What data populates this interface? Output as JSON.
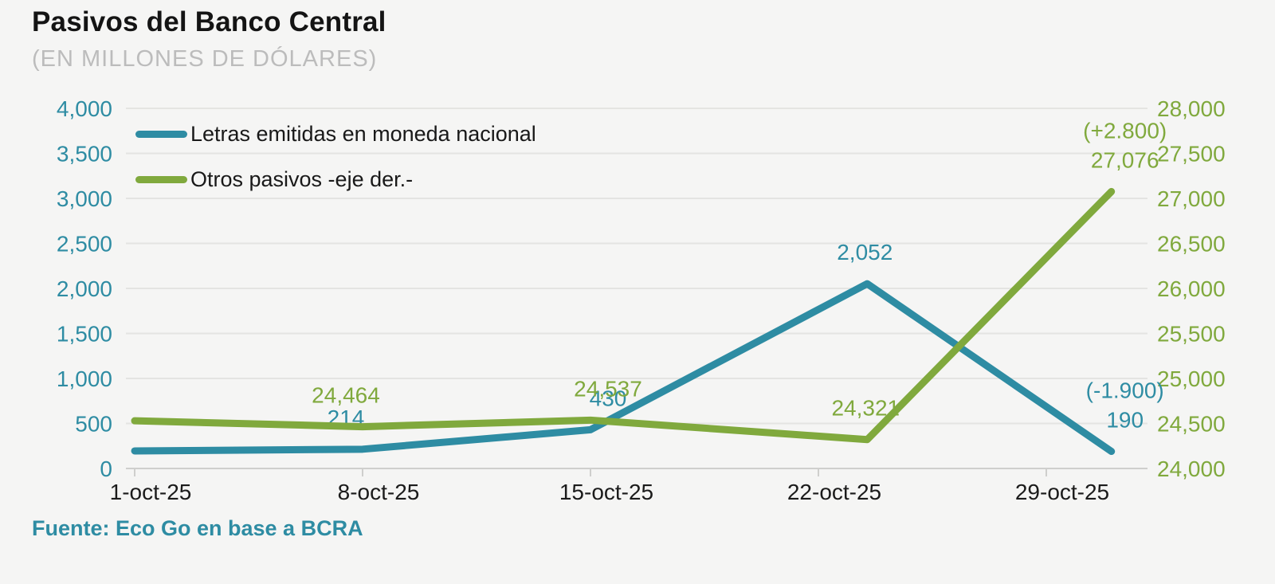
{
  "title": "Pasivos del Banco Central",
  "subtitle": "(EN MILLONES DE DÓLARES)",
  "source_note": "Fuente: Eco Go en base a BCRA",
  "colors": {
    "background": "#f5f5f4",
    "title": "#141414",
    "subtitle": "#bcbcbc",
    "teal": "#2e8ca3",
    "green": "#80a93d",
    "grid": "#e4e4e2",
    "axis": "#cfcfcd",
    "xlabel": "#1b1b1b"
  },
  "legend": {
    "items": [
      {
        "label": "Letras emitidas en moneda nacional"
      },
      {
        "label": "Otros pasivos -eje der.-"
      }
    ]
  },
  "chart_data": {
    "type": "line",
    "title": "Pasivos del Banco Central",
    "subtitle": "(EN MILLONES DE DÓLARES)",
    "x_unit": "days since 1-oct-25",
    "x_tick_days": [
      0,
      7,
      14,
      21,
      28
    ],
    "x_tick_labels": [
      "1-oct-25",
      "8-oct-25",
      "15-oct-25",
      "22-oct-25",
      "29-oct-25"
    ],
    "grid": true,
    "legend_position": "top-left-inside",
    "left_axis": {
      "min": 0,
      "max": 4000,
      "step": 500,
      "tick_labels": [
        "0",
        "500",
        "1,000",
        "1,500",
        "2,000",
        "2,500",
        "3,000",
        "3,500",
        "4,000"
      ]
    },
    "right_axis": {
      "min": 24000,
      "max": 28000,
      "step": 500,
      "tick_labels": [
        "24,000",
        "24,500",
        "25,000",
        "25,500",
        "26,000",
        "26,500",
        "27,000",
        "27,500",
        "28,000"
      ]
    },
    "series": [
      {
        "name": "Letras emitidas en moneda nacional",
        "axis": "left",
        "color": "#2e8ca3",
        "points": [
          {
            "day": 0,
            "value": 195,
            "label": null
          },
          {
            "day": 7,
            "value": 214,
            "label": "214",
            "dx": -21
          },
          {
            "day": 14,
            "value": 430,
            "label": "430",
            "dx": 22
          },
          {
            "day": 22.5,
            "value": 2052,
            "label": "2,052",
            "dx": -3
          },
          {
            "day": 30,
            "value": 190,
            "label": "190",
            "ann": "(-1.900)",
            "dx": 17
          }
        ]
      },
      {
        "name": "Otros pasivos -eje der.-",
        "axis": "right",
        "color": "#80a93d",
        "points": [
          {
            "day": 0,
            "value": 24530,
            "label": null
          },
          {
            "day": 7,
            "value": 24464,
            "label": "24,464",
            "dx": -21
          },
          {
            "day": 14,
            "value": 24537,
            "label": "24,537",
            "dx": 22
          },
          {
            "day": 22.5,
            "value": 24321,
            "label": "24,321",
            "dx": -2
          },
          {
            "day": 30,
            "value": 27076,
            "label": "27,076",
            "ann": "(+2.800)",
            "dx": 17
          }
        ]
      }
    ]
  }
}
